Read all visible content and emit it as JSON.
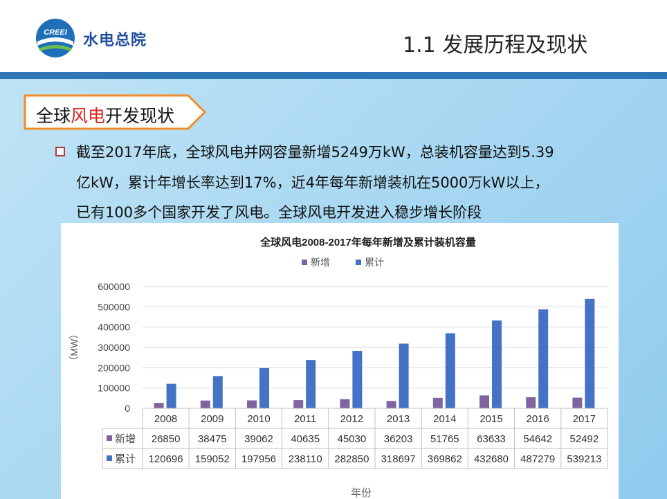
{
  "header": {
    "org_name": "水电总院",
    "logo_text": "CREEI",
    "slide_title": "1.1 发展历程及现状"
  },
  "section": {
    "tag_prefix": "全球",
    "tag_highlight": "风电",
    "tag_suffix": "开发现状"
  },
  "paragraph": {
    "line1": "截至2017年底，全球风电并网容量新增5249万kW，总装机容量达到5.39",
    "line2": "亿kW，累计年增长率达到17%，近4年每年新增装机在5000万kW以上，",
    "line3": "已有100多个国家开发了风电。全球风电开发进入稳步增长阶段"
  },
  "colors": {
    "accent_blue": "#2e75b6",
    "highlight_red": "#e02020",
    "series_new": "#8064a2",
    "series_cumulative": "#4472c4"
  },
  "chart_data": {
    "type": "bar",
    "title": "全球风电2008-2017年每年新增及累计装机容量",
    "xlabel": "年份",
    "ylabel": "（MW）",
    "ylim": [
      0,
      600000
    ],
    "yticks": [
      "0",
      "100000",
      "200000",
      "300000",
      "400000",
      "500000",
      "600000"
    ],
    "categories": [
      "2008",
      "2009",
      "2010",
      "2011",
      "2012",
      "2013",
      "2014",
      "2015",
      "2016",
      "2017"
    ],
    "series": [
      {
        "name": "新增",
        "color": "#8064a2",
        "values": [
          26850,
          38475,
          39062,
          40635,
          45030,
          36203,
          51765,
          63633,
          54642,
          52492
        ]
      },
      {
        "name": "累计",
        "color": "#4472c4",
        "values": [
          120696,
          159052,
          197956,
          238110,
          282850,
          318697,
          369862,
          432680,
          487279,
          539213
        ]
      }
    ],
    "legend": "top",
    "grid": true,
    "data_table": true
  }
}
